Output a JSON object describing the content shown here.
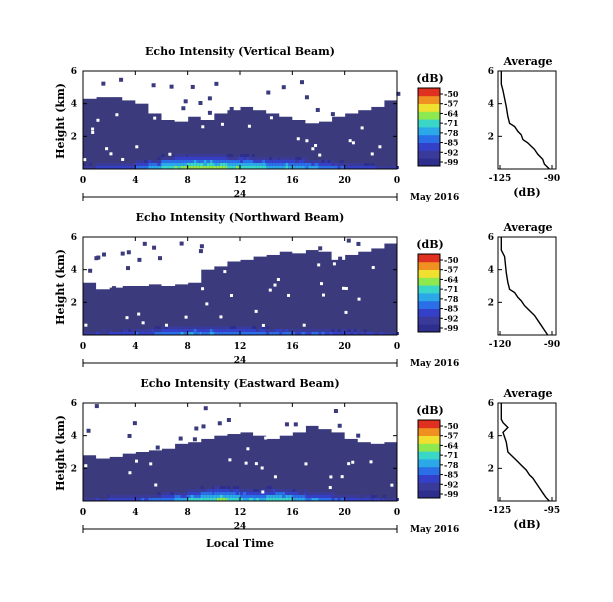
{
  "figure": {
    "x_axis_title": "Local Time",
    "date_label": "May 2016",
    "colorbar_unit": "(dB)",
    "colorbar_ticks": [
      "-50",
      "-57",
      "-64",
      "-71",
      "-78",
      "-85",
      "-92",
      "-99"
    ],
    "palette": [
      "#2e2e8c",
      "#3a3a9a",
      "#3440c8",
      "#2a6ee8",
      "#2aa8e8",
      "#3ad6c8",
      "#8ee850",
      "#f0e030",
      "#f09020",
      "#e03020"
    ],
    "background_color": "#3a3a7c",
    "missing_color": "#ffffff"
  },
  "chart_data": [
    {
      "type": "heatmap",
      "title": "Echo Intensity (Vertical Beam)",
      "xlabel": "",
      "ylabel": "Height (km)",
      "x_ticks": [
        "0",
        "4",
        "8",
        "12",
        "16",
        "20",
        "0"
      ],
      "day_label": "24",
      "y_ticks": [
        "6",
        "4",
        "2"
      ],
      "xlim": [
        0,
        24
      ],
      "ylim": [
        0,
        6
      ],
      "zlim": [
        -99,
        -50
      ],
      "missing_top_km": [
        4.3,
        4.4,
        4.4,
        4.2,
        4.0,
        3.4,
        3.0,
        2.9,
        3.2,
        3.0,
        3.4,
        3.6,
        3.8,
        3.6,
        3.4,
        3.2,
        3.0,
        2.8,
        2.9,
        3.2,
        3.4,
        3.6,
        3.8,
        4.2
      ],
      "surface_max_dB": [
        -88,
        -85,
        -86,
        -84,
        -80,
        -76,
        -70,
        -68,
        -66,
        -66,
        -67,
        -69,
        -70,
        -72,
        -74,
        -73,
        -75,
        -77,
        -80,
        -82,
        -84,
        -86,
        -88,
        -89
      ]
    },
    {
      "type": "line",
      "title": "Average",
      "xlabel": "(dB)",
      "ylabel": "",
      "x_ticks": [
        "-125",
        "-90"
      ],
      "y_ticks": [
        "6",
        "4",
        "2"
      ],
      "xlim": [
        -125,
        -90
      ],
      "ylim": [
        0,
        6
      ],
      "x": [
        -123,
        -123,
        -122,
        -120,
        -119,
        -118,
        -115,
        -113,
        -111,
        -110,
        -107,
        -105,
        -103,
        -101,
        -98,
        -97,
        -94
      ],
      "y": [
        6.0,
        5.2,
        4.8,
        3.8,
        3.2,
        2.8,
        2.6,
        2.3,
        2.1,
        1.8,
        1.6,
        1.4,
        1.2,
        0.9,
        0.6,
        0.3,
        0.0
      ]
    },
    {
      "type": "heatmap",
      "title": "Echo Intensity (Northward Beam)",
      "xlabel": "",
      "ylabel": "Height (km)",
      "x_ticks": [
        "0",
        "4",
        "8",
        "12",
        "16",
        "20",
        "0"
      ],
      "day_label": "24",
      "y_ticks": [
        "6",
        "4",
        "2"
      ],
      "xlim": [
        0,
        24
      ],
      "ylim": [
        0,
        6
      ],
      "zlim": [
        -99,
        -50
      ],
      "missing_top_km": [
        3.2,
        2.8,
        2.9,
        3.0,
        3.0,
        3.1,
        3.0,
        3.1,
        3.2,
        4.0,
        4.2,
        4.5,
        4.6,
        4.8,
        4.9,
        5.1,
        5.0,
        5.2,
        5.1,
        4.6,
        4.9,
        5.1,
        5.3,
        5.6
      ],
      "surface_max_dB": [
        -90,
        -88,
        -87,
        -86,
        -84,
        -82,
        -80,
        -79,
        -78,
        -78,
        -79,
        -80,
        -80,
        -81,
        -82,
        -82,
        -83,
        -83,
        -84,
        -86,
        -87,
        -88,
        -89,
        -90
      ]
    },
    {
      "type": "line",
      "title": "Average",
      "xlabel": "",
      "ylabel": "",
      "x_ticks": [
        "-120",
        "-90"
      ],
      "y_ticks": [
        "6",
        "4",
        "2"
      ],
      "xlim": [
        -125,
        -90
      ],
      "ylim": [
        0,
        6
      ],
      "x": [
        -123,
        -123,
        -121,
        -120,
        -119,
        -118,
        -115,
        -113,
        -111,
        -109,
        -107,
        -105,
        -103,
        -101,
        -99,
        -97,
        -95
      ],
      "y": [
        6.0,
        5.2,
        4.8,
        3.8,
        3.2,
        2.8,
        2.6,
        2.3,
        2.1,
        1.8,
        1.6,
        1.4,
        1.2,
        0.9,
        0.6,
        0.3,
        0.0
      ]
    },
    {
      "type": "heatmap",
      "title": "Echo Intensity (Eastward Beam)",
      "xlabel": "",
      "ylabel": "Height (km)",
      "x_ticks": [
        "0",
        "4",
        "8",
        "12",
        "16",
        "20",
        "0"
      ],
      "day_label": "24",
      "y_ticks": [
        "6",
        "4",
        "2"
      ],
      "xlim": [
        0,
        24
      ],
      "ylim": [
        0,
        6
      ],
      "zlim": [
        -99,
        -50
      ],
      "missing_top_km": [
        2.8,
        2.6,
        2.7,
        2.9,
        3.0,
        3.1,
        3.2,
        3.5,
        3.6,
        3.8,
        4.0,
        4.1,
        4.2,
        4.0,
        3.8,
        4.0,
        4.2,
        4.6,
        4.4,
        4.2,
        3.8,
        3.6,
        3.5,
        3.6
      ],
      "surface_max_dB": [
        -90,
        -88,
        -86,
        -85,
        -84,
        -82,
        -80,
        -76,
        -72,
        -70,
        -68,
        -70,
        -72,
        -74,
        -70,
        -72,
        -75,
        -78,
        -80,
        -82,
        -85,
        -87,
        -88,
        -90
      ]
    },
    {
      "type": "line",
      "title": "Average",
      "xlabel": "(dB)",
      "ylabel": "",
      "x_ticks": [
        "-125",
        "-95"
      ],
      "y_ticks": [
        "6",
        "4",
        "2"
      ],
      "xlim": [
        -125,
        -90
      ],
      "ylim": [
        0,
        6
      ],
      "x": [
        -123,
        -123,
        -122,
        -119,
        -122,
        -120,
        -119,
        -116,
        -113,
        -111,
        -108,
        -106,
        -104,
        -102,
        -100,
        -98,
        -96,
        -94
      ],
      "y": [
        6.0,
        5.0,
        4.8,
        4.5,
        4.2,
        3.6,
        3.0,
        2.7,
        2.4,
        2.2,
        1.9,
        1.6,
        1.4,
        1.1,
        0.8,
        0.5,
        0.2,
        0.0
      ]
    }
  ]
}
